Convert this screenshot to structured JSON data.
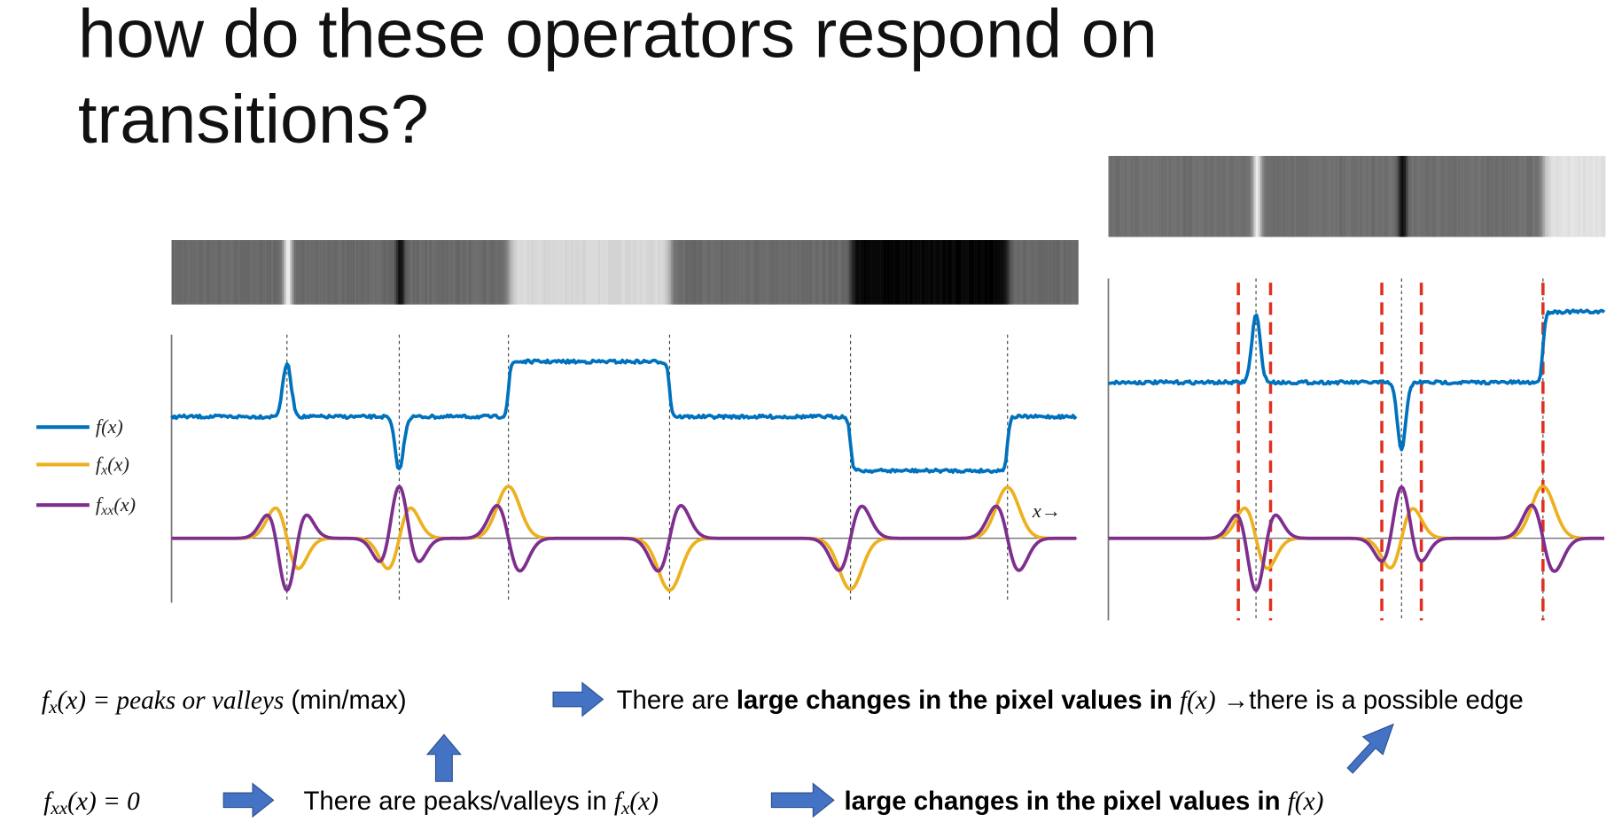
{
  "title_lines": [
    "how do these operators respond on",
    "transitions?"
  ],
  "legend": [
    [
      {
        "text": "f(x)",
        "style": "math"
      }
    ],
    [
      {
        "text": "f",
        "style": "math"
      },
      {
        "text": "x",
        "style": "sub"
      },
      {
        "text": "(x)",
        "style": "math"
      }
    ],
    [
      {
        "text": "f",
        "style": "math"
      },
      {
        "text": "xx",
        "style": "sub"
      },
      {
        "text": "(x)",
        "style": "math"
      }
    ]
  ],
  "axis_arrow": "x→",
  "row1": [
    [
      {
        "text": "f",
        "style": "math"
      },
      {
        "text": "x",
        "style": "sub"
      },
      {
        "text": "(x) = peaks or valleys",
        "style": "math"
      },
      {
        "text": " (min/max)",
        "style": "normal"
      }
    ],
    [
      {
        "text": "There are ",
        "style": "normal"
      },
      {
        "text": "large changes in the pixel values in ",
        "style": "bold"
      },
      {
        "text": "f(x)",
        "style": "math"
      },
      {
        "text": " →there is a possible edge",
        "style": "normal"
      }
    ]
  ],
  "row2": [
    [
      {
        "text": "f",
        "style": "math"
      },
      {
        "text": "xx",
        "style": "sub"
      },
      {
        "text": "(x) = 0",
        "style": "math"
      }
    ],
    [
      {
        "text": "There are peaks/valleys in ",
        "style": "normal"
      },
      {
        "text": "f",
        "style": "math"
      },
      {
        "text": "x",
        "style": "sub"
      },
      {
        "text": "(x)",
        "style": "math"
      }
    ],
    [
      {
        "text": "large changes in the pixel values in ",
        "style": "bold"
      },
      {
        "text": "f(x)",
        "style": "math"
      }
    ]
  ]
}
